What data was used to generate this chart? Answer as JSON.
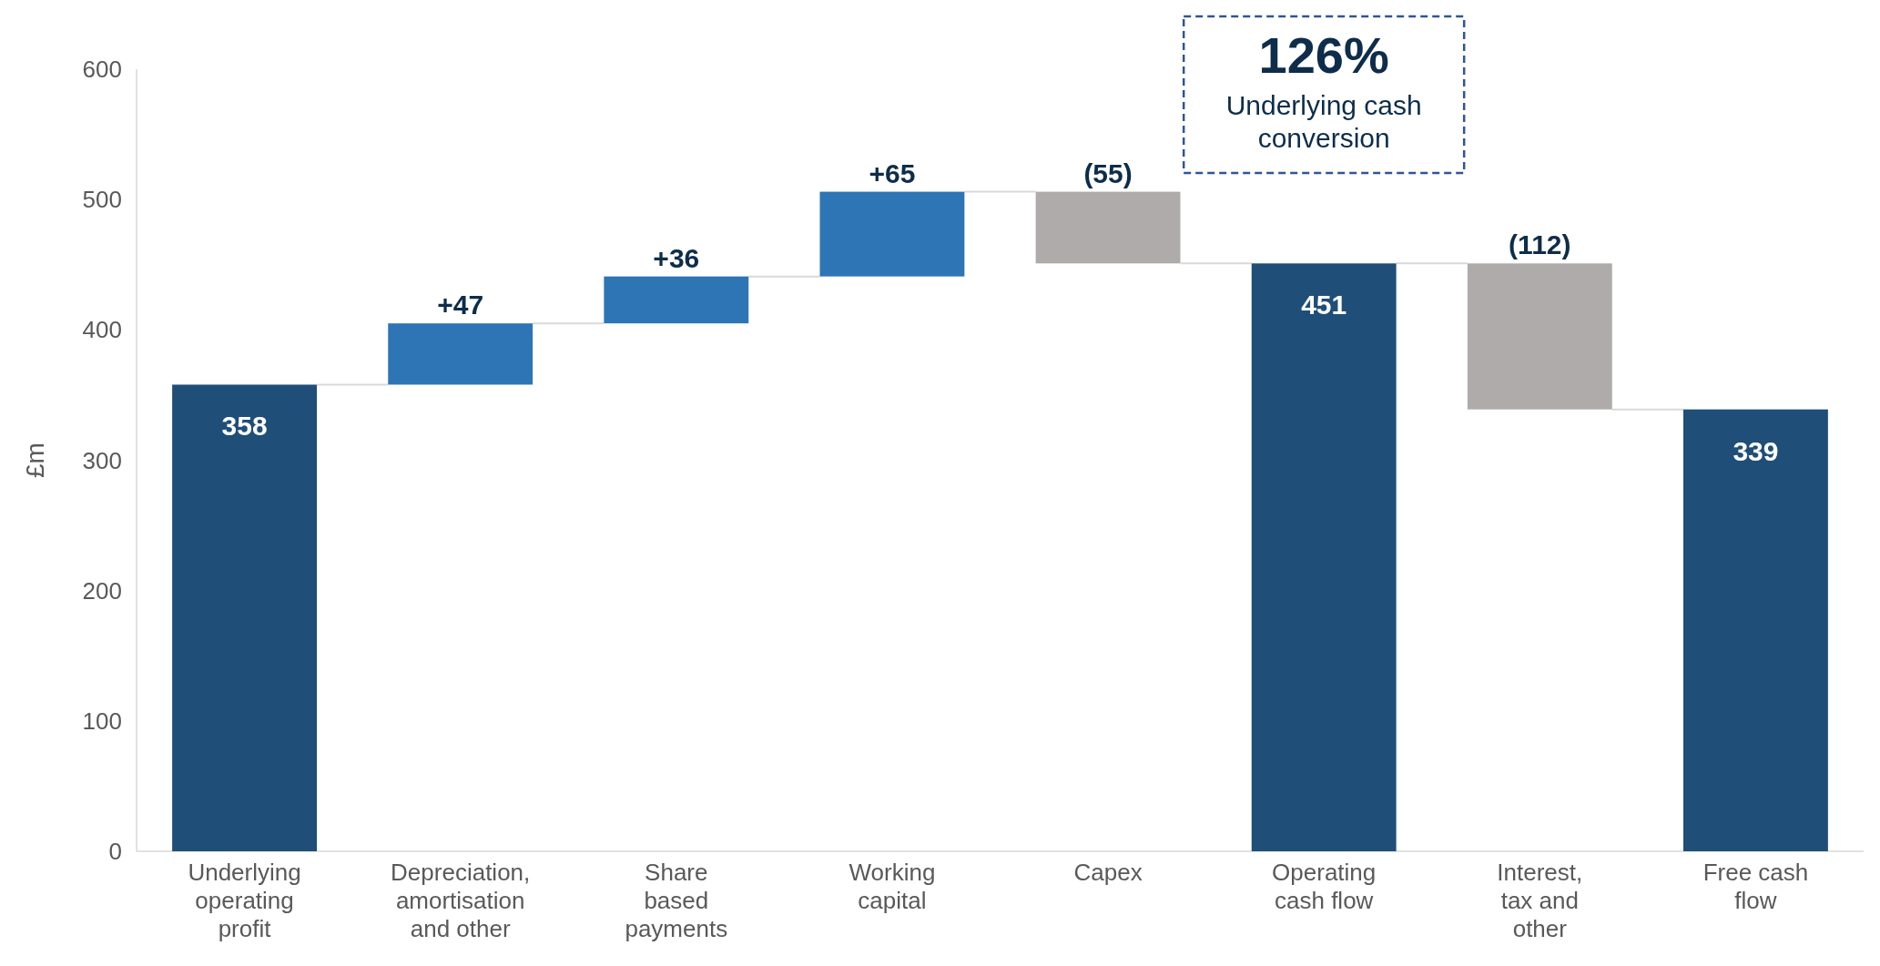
{
  "chart_data": {
    "type": "bar",
    "ylabel": "£m",
    "categories": [
      "Underlying operating profit",
      "Depreciation, amortisation and other",
      "Share based payments",
      "Working capital",
      "Capex",
      "Operating cash flow",
      "Interest, tax and other",
      "Free cash flow"
    ],
    "values": [
      358,
      47,
      36,
      65,
      -55,
      451,
      -112,
      339
    ],
    "base": [
      0,
      358,
      405,
      441,
      506,
      0,
      451,
      0
    ],
    "colors": [
      "#1f4e79",
      "#2e75b6",
      "#2e75b6",
      "#2e75b6",
      "#afabab",
      "#1f4e79",
      "#afabab",
      "#1f4e79"
    ],
    "value_labels": [
      "358",
      "+47",
      "+36",
      "+65",
      "(55)",
      "451",
      "(112)",
      "339"
    ],
    "ylim": [
      0,
      600
    ],
    "yticks": [
      0,
      100,
      200,
      300,
      400,
      500,
      600
    ],
    "grid": false,
    "annotations": [
      "126%",
      "Underlying cash conversion"
    ]
  }
}
